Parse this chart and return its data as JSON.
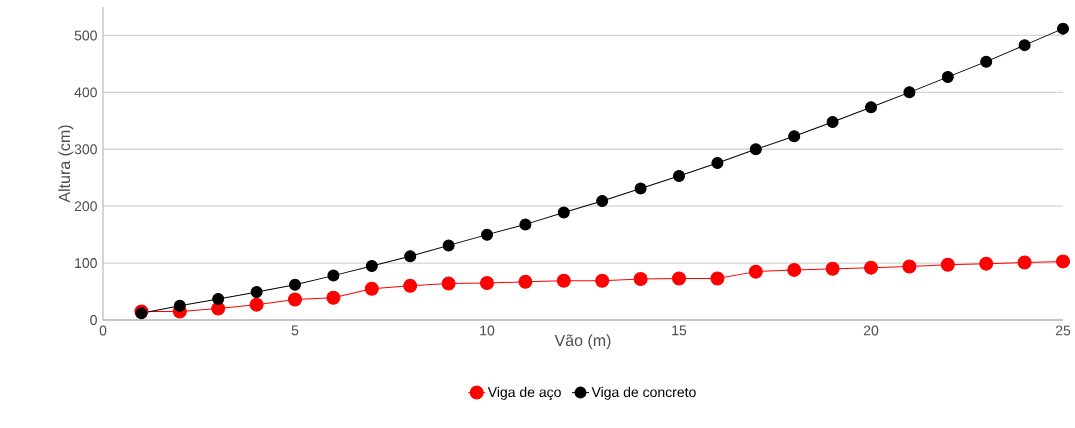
{
  "chart_data": {
    "type": "line",
    "xlabel": "Vão (m)",
    "ylabel": "Altura (cm)",
    "x": [
      1,
      2,
      3,
      4,
      5,
      6,
      7,
      8,
      9,
      10,
      11,
      12,
      13,
      14,
      15,
      16,
      17,
      18,
      19,
      20,
      21,
      22,
      23,
      24,
      25
    ],
    "series": [
      {
        "name": "Viga de aço",
        "color": "#ff0000",
        "values": [
          15,
          15,
          20,
          27,
          36,
          39,
          55,
          60,
          64,
          65,
          67,
          69,
          69,
          72,
          73,
          73,
          85,
          88,
          90,
          92,
          94,
          97,
          99,
          101,
          103
        ]
      },
      {
        "name": "Viga de concreto",
        "color": "#000000",
        "values": [
          12,
          25,
          37,
          49,
          62,
          78,
          95,
          112,
          131,
          150,
          168,
          189,
          209,
          231,
          253,
          276,
          300,
          323,
          348,
          374,
          400,
          427,
          454,
          483,
          512
        ]
      }
    ],
    "xlim": [
      0,
      25
    ],
    "xticks": [
      0,
      5,
      10,
      15,
      20,
      25
    ],
    "ylim": [
      0,
      550
    ],
    "yticks": [
      0,
      100,
      200,
      300,
      400,
      500
    ],
    "grid": "y",
    "legend": "bottom",
    "marker": "circle",
    "line_style": "solid"
  }
}
